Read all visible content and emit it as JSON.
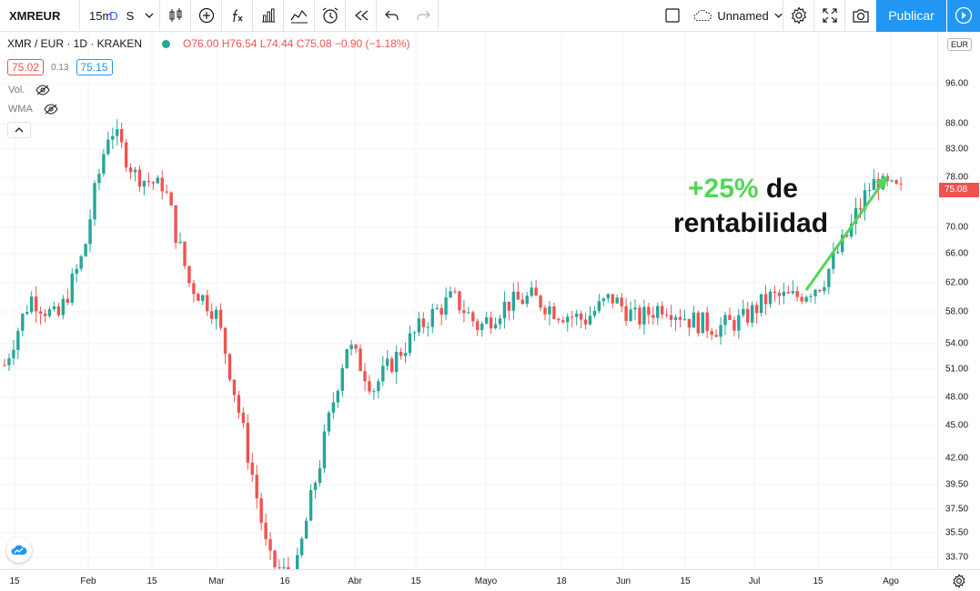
{
  "toolbar": {
    "symbol": "XMREUR",
    "interval": "15m",
    "interval_d": "D",
    "interval_s": "S",
    "layout_name": "Unnamed",
    "publish_label": "Publicar",
    "icons": [
      "bar-style-icon",
      "indicators-icon",
      "fx-icon",
      "compare-icon",
      "templates-icon",
      "alert-icon",
      "replay-icon",
      "undo-icon",
      "redo-icon",
      "layout-square-icon",
      "cloud-icon",
      "settings-icon",
      "fullscreen-icon",
      "camera-icon",
      "play-icon"
    ]
  },
  "legend": {
    "title": "XMR / EUR · 1D · KRAKEN",
    "ohlc": "O76.00 H76.54 L74.44 C75.08 −0.90 (−1.18%)",
    "bid": "75.02",
    "spread": "0.13",
    "ask": "75.15",
    "indicators": [
      "Vol.",
      "WMA"
    ]
  },
  "axis": {
    "currency": "EUR",
    "current_price": "75.08",
    "current_price_value": 75.08,
    "price_ticks": [
      "96.00",
      "88.00",
      "83.00",
      "78.00",
      "74.00",
      "70.00",
      "66.00",
      "62.00",
      "58.00",
      "54.00",
      "51.00",
      "48.00",
      "45.00",
      "42.00",
      "39.50",
      "37.50",
      "35.50",
      "33.70"
    ],
    "time_ticks": [
      "15",
      "Feb",
      "15",
      "Mar",
      "16",
      "Abr",
      "15",
      "Mayo",
      "18",
      "Jun",
      "15",
      "Jul",
      "15",
      "Ago"
    ]
  },
  "annotation": {
    "percent": "+25%",
    "line1_rest": " de",
    "line2": "rentabilidad",
    "color": "#52d655"
  },
  "colors": {
    "up": "#26a69a",
    "down": "#ef5350",
    "publish": "#2196f3",
    "grid": "#f0f3fa"
  },
  "chart_data": {
    "type": "candlestick",
    "symbol": "XMR / EUR",
    "approx_close_path": [
      51.5,
      60,
      57,
      66,
      87.5,
      78,
      76,
      62,
      58,
      45,
      33.5,
      32,
      42,
      54,
      49,
      53,
      57,
      60,
      56,
      59,
      60,
      58,
      57,
      60,
      57,
      59,
      57,
      56,
      57,
      60,
      60,
      62,
      69,
      77,
      75.08
    ]
  }
}
